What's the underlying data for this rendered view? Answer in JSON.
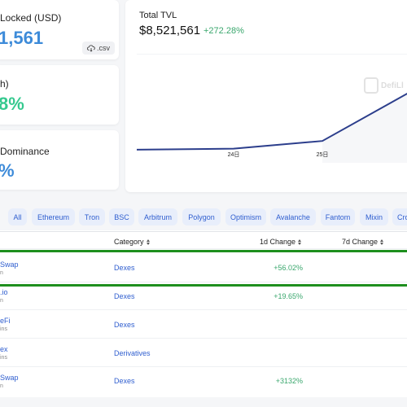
{
  "stats": {
    "tvl_locked_label": "Locked (USD)",
    "tvl_locked_value": "1,561",
    "csv_label": ".csv",
    "change_label": "h)",
    "change_value": "8%",
    "dominance_label": "Dominance",
    "dominance_value": "%"
  },
  "tvl": {
    "label": "Total TVL",
    "value": "$8,521,561",
    "change": "+272.28%"
  },
  "chart_data": {
    "type": "line",
    "x": [
      "24日",
      "25日",
      "26"
    ],
    "values": [
      0.13,
      0.2,
      0.65
    ],
    "watermark": "DefiLl",
    "color": "#2c3e8c"
  },
  "chains": [
    {
      "label": "All"
    },
    {
      "label": "Ethereum"
    },
    {
      "label": "Tron"
    },
    {
      "label": "BSC"
    },
    {
      "label": "Arbitrum"
    },
    {
      "label": "Polygon"
    },
    {
      "label": "Optimism"
    },
    {
      "label": "Avalanche"
    },
    {
      "label": "Fantom"
    },
    {
      "label": "Mixin"
    },
    {
      "label": "Cro"
    }
  ],
  "table": {
    "headers": {
      "category": "Category",
      "change_1d": "1d Change",
      "change_7d": "7d Change"
    },
    "rows": [
      {
        "name": "Swap",
        "sub": "n",
        "category": "Dexes",
        "change_1d": "+56.02%"
      },
      {
        "name": ".io",
        "sub": "n",
        "category": "Dexes",
        "change_1d": "+19.65%"
      },
      {
        "name": "eFi",
        "sub": "ins",
        "category": "Dexes",
        "change_1d": ""
      },
      {
        "name": "ex",
        "sub": "ins",
        "category": "Derivatives",
        "change_1d": ""
      },
      {
        "name": "Swap",
        "sub": "n",
        "category": "Dexes",
        "change_1d": "+3132%"
      }
    ]
  },
  "colors": {
    "accent": "#2f5ecf",
    "positive": "#3aa76d",
    "stat_blue": "#3d8bd9",
    "stat_green": "#36c98f",
    "highlight": "#1e8f1e"
  }
}
